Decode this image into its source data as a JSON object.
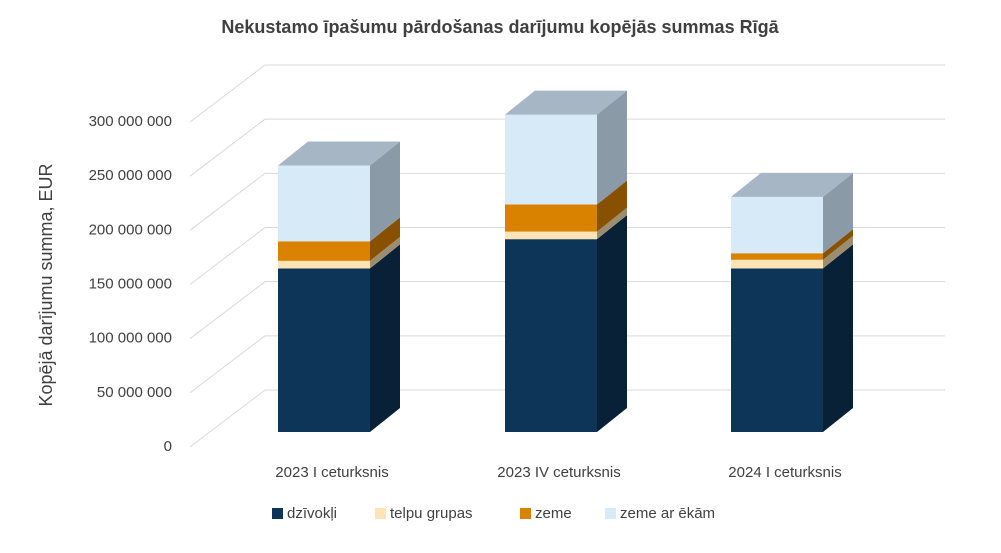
{
  "chart_data": {
    "type": "bar3d_stacked",
    "title": "Nekustamo īpašumu pārdošanas darījumu kopējās summas Rīgā",
    "y_label": "Kopējā darījumu summa, EUR",
    "categories": [
      "2023 I ceturksnis",
      "2023 IV ceturksnis",
      "2024 I ceturksnis"
    ],
    "series": [
      {
        "name": "dzīvokļi",
        "color": "#0d3557",
        "values": [
          151000000,
          178000000,
          151000000
        ]
      },
      {
        "name": "telpu grupas",
        "color": "#fde3b5",
        "values": [
          7000000,
          7000000,
          8000000
        ]
      },
      {
        "name": "zeme",
        "color": "#d98200",
        "values": [
          18000000,
          25000000,
          6000000
        ]
      },
      {
        "name": "zeme ar ēkām",
        "color": "#d6eaf8",
        "values": [
          70000000,
          83000000,
          52000000
        ]
      }
    ],
    "ylim": [
      0,
      300000000
    ],
    "yticks": [
      0,
      {
        "value": 50000000,
        "label": "50 000 000"
      },
      {
        "value": 100000000,
        "label": "100 000 000"
      },
      {
        "value": 150000000,
        "label": "150 000 000"
      },
      {
        "value": 200000000,
        "label": "200 000 000"
      },
      {
        "value": 250000000,
        "label": "250 000 000"
      },
      {
        "value": 300000000,
        "label": "300 000 000"
      }
    ],
    "grid": true
  }
}
